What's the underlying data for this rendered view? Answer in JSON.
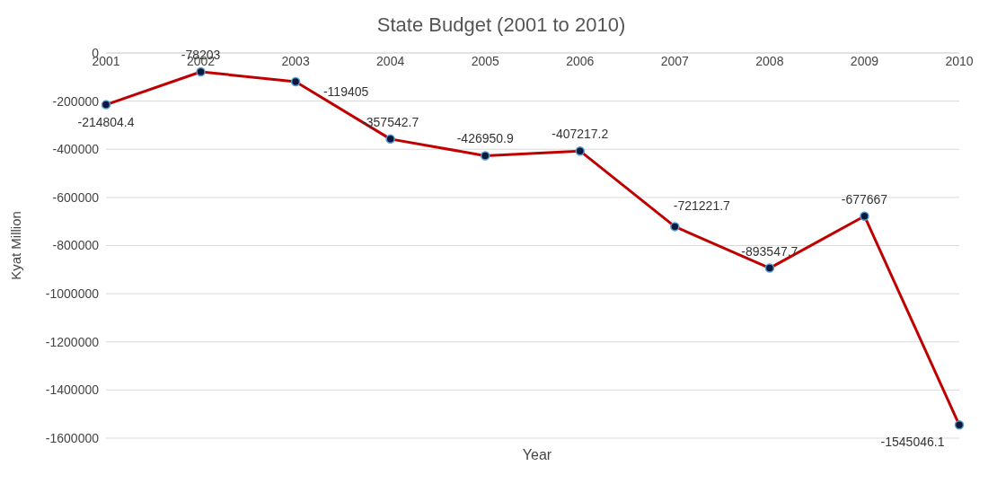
{
  "chart_data": {
    "type": "line",
    "title": "State Budget (2001 to 2010)",
    "xlabel": "Year",
    "ylabel": "Kyat Million",
    "categories": [
      "2001",
      "2002",
      "2003",
      "2004",
      "2005",
      "2006",
      "2007",
      "2008",
      "2009",
      "2010"
    ],
    "series": [
      {
        "color": "#c00000",
        "values": [
          -214804.4,
          -78203,
          -119405,
          -357542.7,
          -426950.9,
          -407217.2,
          -721221.7,
          -893547.7,
          -677667,
          -1545046.1
        ]
      }
    ],
    "ylim": [
      -1600000,
      0
    ],
    "yticks": [
      -1600000,
      -1400000,
      -1200000,
      -1000000,
      -800000,
      -600000,
      -400000,
      -200000,
      0
    ],
    "grid": "y",
    "marker": "circle",
    "line_style": "solid",
    "data_labels": true
  }
}
